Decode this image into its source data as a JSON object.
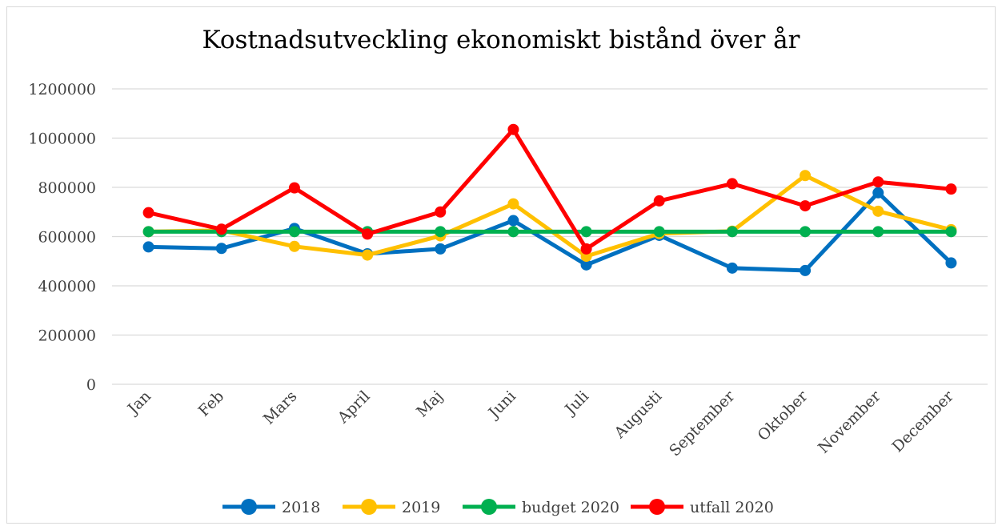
{
  "chart_data": {
    "type": "line",
    "title": "Kostnadsutveckling ekonomiskt bistånd över år",
    "xlabel": "",
    "ylabel": "",
    "categories": [
      "Jan",
      "Feb",
      "Mars",
      "April",
      "Maj",
      "Juni",
      "Juli",
      "Augusti",
      "September",
      "Oktober",
      "November",
      "December"
    ],
    "ylim": [
      0,
      1200000
    ],
    "yticks": [
      "0",
      "200000",
      "400000",
      "600000",
      "800000",
      "1000000",
      "1200000"
    ],
    "grid": true,
    "legend_position": "bottom",
    "series": [
      {
        "name": "2018",
        "color": "#0070C0",
        "values": [
          558000,
          552000,
          633000,
          530000,
          550000,
          665000,
          485000,
          605000,
          472000,
          462000,
          778000,
          493000
        ]
      },
      {
        "name": "2019",
        "color": "#FFC000",
        "values": [
          620000,
          625000,
          560000,
          525000,
          603000,
          733000,
          520000,
          612000,
          622000,
          848000,
          703000,
          628000
        ]
      },
      {
        "name": "budget 2020",
        "color": "#00B050",
        "values": [
          620000,
          620000,
          620000,
          620000,
          620000,
          620000,
          620000,
          620000,
          620000,
          620000,
          620000,
          620000
        ]
      },
      {
        "name": "utfall 2020",
        "color": "#FF0000",
        "values": [
          697000,
          630000,
          798000,
          610000,
          700000,
          1035000,
          550000,
          745000,
          815000,
          725000,
          822000,
          793000
        ]
      }
    ]
  }
}
